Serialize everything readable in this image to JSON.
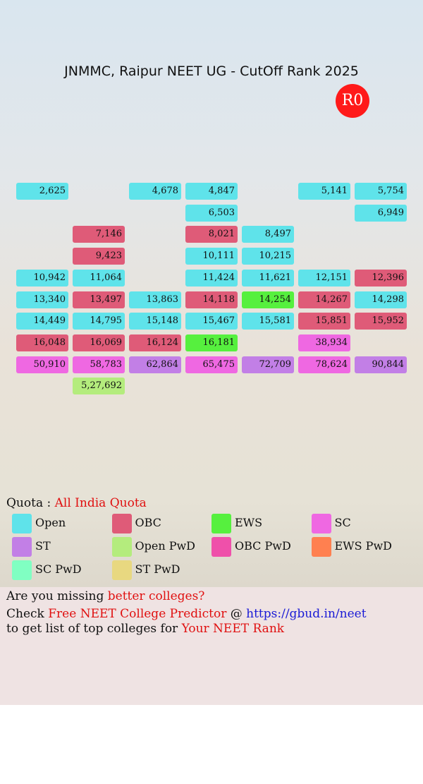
{
  "header": {
    "title": "JNMMC, Raipur NEET UG - CutOff Rank 2025",
    "round": "R0"
  },
  "grid": {
    "rows": [
      [
        {
          "rank": "2,625",
          "quota": "Open"
        },
        null,
        {
          "rank": "4,678",
          "quota": "Open"
        },
        {
          "rank": "4,847",
          "quota": "Open"
        },
        null,
        {
          "rank": "5,141",
          "quota": "Open"
        },
        {
          "rank": "5,754",
          "quota": "Open"
        }
      ],
      [
        null,
        null,
        null,
        {
          "rank": "6,503",
          "quota": "Open"
        },
        null,
        null,
        {
          "rank": "6,949",
          "quota": "Open"
        }
      ],
      [
        null,
        {
          "rank": "7,146",
          "quota": "OBC"
        },
        null,
        {
          "rank": "8,021",
          "quota": "OBC"
        },
        {
          "rank": "8,497",
          "quota": "Open"
        },
        null,
        null
      ],
      [
        null,
        {
          "rank": "9,423",
          "quota": "OBC"
        },
        null,
        {
          "rank": "10,111",
          "quota": "Open"
        },
        {
          "rank": "10,215",
          "quota": "Open"
        },
        null,
        null
      ],
      [
        {
          "rank": "10,942",
          "quota": "Open"
        },
        {
          "rank": "11,064",
          "quota": "Open"
        },
        null,
        {
          "rank": "11,424",
          "quota": "Open"
        },
        {
          "rank": "11,621",
          "quota": "Open"
        },
        {
          "rank": "12,151",
          "quota": "Open"
        },
        {
          "rank": "12,396",
          "quota": "OBC"
        }
      ],
      [
        {
          "rank": "13,340",
          "quota": "Open"
        },
        {
          "rank": "13,497",
          "quota": "OBC"
        },
        {
          "rank": "13,863",
          "quota": "Open"
        },
        {
          "rank": "14,118",
          "quota": "OBC"
        },
        {
          "rank": "14,254",
          "quota": "EWS"
        },
        {
          "rank": "14,267",
          "quota": "OBC"
        },
        {
          "rank": "14,298",
          "quota": "Open"
        }
      ],
      [
        {
          "rank": "14,449",
          "quota": "Open"
        },
        {
          "rank": "14,795",
          "quota": "Open"
        },
        {
          "rank": "15,148",
          "quota": "Open"
        },
        {
          "rank": "15,467",
          "quota": "Open"
        },
        {
          "rank": "15,581",
          "quota": "Open"
        },
        {
          "rank": "15,851",
          "quota": "OBC"
        },
        {
          "rank": "15,952",
          "quota": "OBC"
        }
      ],
      [
        {
          "rank": "16,048",
          "quota": "OBC"
        },
        {
          "rank": "16,069",
          "quota": "OBC"
        },
        {
          "rank": "16,124",
          "quota": "OBC"
        },
        {
          "rank": "16,181",
          "quota": "EWS"
        },
        null,
        {
          "rank": "38,934",
          "quota": "SC"
        },
        null
      ],
      [
        {
          "rank": "50,910",
          "quota": "SC"
        },
        {
          "rank": "58,783",
          "quota": "SC"
        },
        {
          "rank": "62,864",
          "quota": "ST"
        },
        {
          "rank": "65,475",
          "quota": "SC"
        },
        {
          "rank": "72,709",
          "quota": "ST"
        },
        {
          "rank": "78,624",
          "quota": "SC"
        },
        {
          "rank": "90,844",
          "quota": "ST"
        }
      ],
      [
        null,
        {
          "rank": "5,27,692",
          "quota": "Open PwD"
        },
        null,
        null,
        null,
        null,
        null
      ]
    ]
  },
  "quota": {
    "label": "Quota :",
    "value": "All India Quota"
  },
  "legend": [
    {
      "name": "Open",
      "color": "#5fe3ea"
    },
    {
      "name": "OBC",
      "color": "#df5b78"
    },
    {
      "name": "EWS",
      "color": "#56f03e"
    },
    {
      "name": "SC",
      "color": "#ef68e2"
    },
    {
      "name": "ST",
      "color": "#c27fe6"
    },
    {
      "name": "Open PwD",
      "color": "#b4ec7d"
    },
    {
      "name": "OBC PwD",
      "color": "#ef50aa"
    },
    {
      "name": "EWS PwD",
      "color": "#ff8050"
    },
    {
      "name": "SC PwD",
      "color": "#80ffc2"
    },
    {
      "name": "ST PwD",
      "color": "#e8d880"
    }
  ],
  "footer": {
    "line1": {
      "text": "Are you missing",
      "highlight": "better colleges?"
    },
    "line2": {
      "text": "Check",
      "highlight": "Free NEET College Predictor",
      "at": "@",
      "link": "https://gbud.in/neet"
    },
    "line3": {
      "text": "to get list of top colleges for",
      "highlight": "Your NEET Rank"
    }
  }
}
